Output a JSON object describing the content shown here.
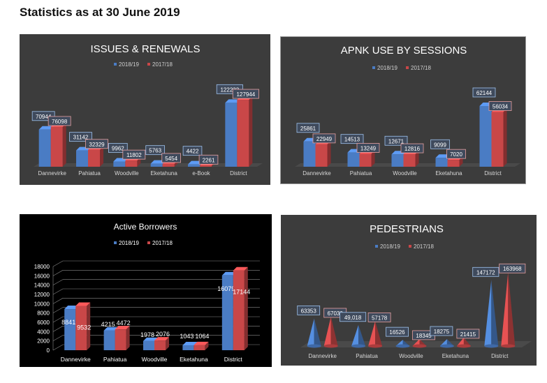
{
  "page": {
    "title": "Statistics as at 30 June 2019"
  },
  "colors": {
    "series_2018_19": "#4a7cc4",
    "series_2017_18": "#c94748",
    "panel_dark": "#3c3c3c",
    "panel_black": "#000000",
    "text_light": "#e6e6e6",
    "label_box": "#3f4a5c"
  },
  "chart_data": [
    {
      "id": "issues",
      "type": "bar",
      "title": "ISSUES & RENEWALS",
      "legend_position": "top",
      "categories": [
        "Dannevirke",
        "Pahiatua",
        "Woodville",
        "Eketahuna",
        "e-Book",
        "District"
      ],
      "series": [
        {
          "name": "2018/19",
          "values": [
            70944,
            31142,
            9962,
            5763,
            4422,
            122233
          ],
          "labels": [
            "70944",
            "31142",
            "9962",
            "5763",
            "4422",
            "122233"
          ]
        },
        {
          "name": "2017/18",
          "values": [
            76098,
            32329,
            11802,
            5454,
            2261,
            127944
          ],
          "labels": [
            "76098",
            "32329",
            "11802",
            "5454",
            "2261",
            "127944"
          ]
        }
      ],
      "ylim": [
        0,
        140000
      ],
      "grid": false
    },
    {
      "id": "apnk",
      "type": "bar",
      "title": "APNK USE BY SESSIONS",
      "legend_position": "top",
      "categories": [
        "Dannevirke",
        "Pahiatua",
        "Woodville",
        "Eketahuna",
        "District"
      ],
      "series": [
        {
          "name": "2018/19",
          "values": [
            25861,
            14513,
            12671,
            9099,
            62144
          ],
          "labels": [
            "25861",
            "14513",
            "12671",
            "9099",
            "62144"
          ]
        },
        {
          "name": "2017/18",
          "values": [
            22949,
            13249,
            12816,
            7020,
            56034
          ],
          "labels": [
            "22949",
            "13249",
            "12816",
            "7020",
            "56034"
          ]
        }
      ],
      "ylim": [
        0,
        70000
      ],
      "grid": false
    },
    {
      "id": "borrowers",
      "type": "bar",
      "title": "Active Borrowers",
      "legend_position": "top",
      "categories": [
        "Dannevirke",
        "Pahiatua",
        "Woodville",
        "Eketahuna",
        "District"
      ],
      "series": [
        {
          "name": "2018/19",
          "values": [
            8841,
            4215,
            1978,
            1043,
            16079
          ],
          "labels": [
            "8841",
            "4215",
            "1978",
            "1043",
            "16079"
          ]
        },
        {
          "name": "2017/18",
          "values": [
            9532,
            4472,
            2076,
            1064,
            17144
          ],
          "labels": [
            "9532",
            "4472",
            "2076",
            "1064",
            "17144"
          ]
        }
      ],
      "ylim": [
        0,
        18000
      ],
      "yticks": [
        "0",
        "2000",
        "4000",
        "6000",
        "8000",
        "10000",
        "12000",
        "14000",
        "16000",
        "18000"
      ],
      "grid": true
    },
    {
      "id": "pedestrians",
      "type": "bar",
      "title": "PEDESTRIANS",
      "legend_position": "top",
      "categories": [
        "Dannevirke",
        "Pahiatua",
        "Woodville",
        "Eketahuna",
        "District"
      ],
      "series": [
        {
          "name": "2018/19",
          "values": [
            63353,
            49018,
            16526,
            18275,
            147172
          ],
          "labels": [
            "63353",
            "49,018",
            "16526",
            "18275",
            "147172"
          ]
        },
        {
          "name": "2017/18",
          "values": [
            67030,
            57178,
            18345,
            21415,
            163968
          ],
          "labels": [
            "67030",
            "57178",
            "18345",
            "21415",
            "163968"
          ]
        }
      ],
      "ylim": [
        0,
        175000
      ],
      "grid": false
    }
  ]
}
